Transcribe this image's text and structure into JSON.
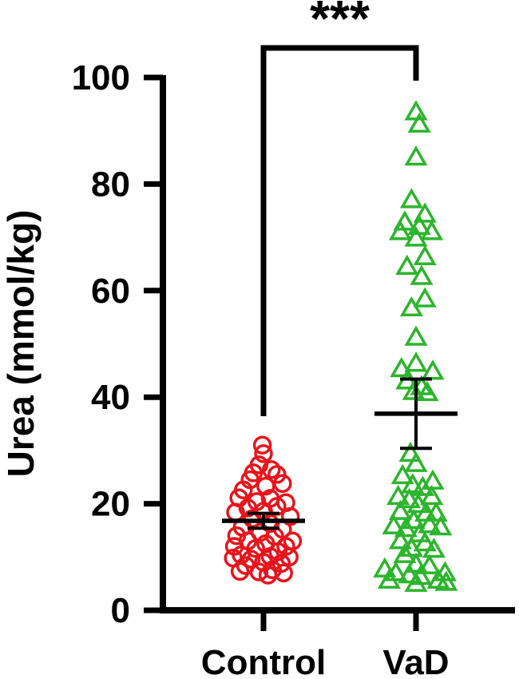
{
  "chart_data": {
    "type": "scatter",
    "title": "",
    "xlabel": "",
    "ylabel": "Urea (mmol/kg)",
    "ylim": [
      0,
      100
    ],
    "yticks": [
      0,
      20,
      40,
      60,
      80,
      100
    ],
    "categories": [
      "Control",
      "VaD"
    ],
    "grid": false,
    "legend": "none",
    "significance": {
      "label": "***",
      "between": [
        "Control",
        "VaD"
      ]
    },
    "series": [
      {
        "category": "Control",
        "marker": "circle-open",
        "color": "#e8141c",
        "mean": 16.8,
        "error_low": 15.4,
        "error_high": 18.2,
        "points": [
          {
            "x": -0.01,
            "y": 31.0
          },
          {
            "x": 0.0,
            "y": 29.4
          },
          {
            "x": -0.04,
            "y": 27.3
          },
          {
            "x": 0.07,
            "y": 26.4
          },
          {
            "x": -0.09,
            "y": 25.8
          },
          {
            "x": 0.12,
            "y": 25.5
          },
          {
            "x": -0.12,
            "y": 24.5
          },
          {
            "x": 0.17,
            "y": 23.8
          },
          {
            "x": 0.02,
            "y": 23.3
          },
          {
            "x": -0.18,
            "y": 22.6
          },
          {
            "x": -0.22,
            "y": 21.1
          },
          {
            "x": 0.06,
            "y": 21.0
          },
          {
            "x": 0.2,
            "y": 20.2
          },
          {
            "x": -0.06,
            "y": 20.4
          },
          {
            "x": -0.14,
            "y": 19.2
          },
          {
            "x": 0.12,
            "y": 19.5
          },
          {
            "x": 0.0,
            "y": 18.6
          },
          {
            "x": -0.25,
            "y": 18.4
          },
          {
            "x": 0.24,
            "y": 17.6
          },
          {
            "x": -0.1,
            "y": 17.2
          },
          {
            "x": 0.06,
            "y": 16.3
          },
          {
            "x": -0.19,
            "y": 15.6
          },
          {
            "x": 0.17,
            "y": 15.2
          },
          {
            "x": -0.03,
            "y": 14.6
          },
          {
            "x": -0.24,
            "y": 14.0
          },
          {
            "x": 0.1,
            "y": 13.9
          },
          {
            "x": 0.26,
            "y": 13.0
          },
          {
            "x": -0.14,
            "y": 13.0
          },
          {
            "x": 0.02,
            "y": 12.5
          },
          {
            "x": 0.2,
            "y": 12.0
          },
          {
            "x": -0.26,
            "y": 12.0
          },
          {
            "x": -0.07,
            "y": 11.6
          },
          {
            "x": 0.13,
            "y": 11.0
          },
          {
            "x": -0.2,
            "y": 10.4
          },
          {
            "x": 0.06,
            "y": 10.1
          },
          {
            "x": 0.23,
            "y": 10.0
          },
          {
            "x": -0.11,
            "y": 9.6
          },
          {
            "x": -0.27,
            "y": 9.8
          },
          {
            "x": 0.0,
            "y": 9.0
          },
          {
            "x": 0.16,
            "y": 8.8
          },
          {
            "x": -0.16,
            "y": 8.4
          },
          {
            "x": 0.08,
            "y": 7.6
          },
          {
            "x": -0.04,
            "y": 7.2
          },
          {
            "x": -0.21,
            "y": 7.3
          },
          {
            "x": 0.18,
            "y": 7.0
          },
          {
            "x": 0.04,
            "y": 6.6
          }
        ]
      },
      {
        "category": "VaD",
        "marker": "triangle-open",
        "color": "#2cb52c",
        "mean": 36.9,
        "error_low": 30.4,
        "error_high": 43.4,
        "points": [
          {
            "x": 0.0,
            "y": 93.5
          },
          {
            "x": 0.03,
            "y": 91.2
          },
          {
            "x": 0.0,
            "y": 85.0
          },
          {
            "x": -0.04,
            "y": 77.0
          },
          {
            "x": 0.08,
            "y": 74.3
          },
          {
            "x": -0.1,
            "y": 72.8
          },
          {
            "x": 0.03,
            "y": 72.0
          },
          {
            "x": -0.14,
            "y": 71.0
          },
          {
            "x": 0.14,
            "y": 71.0
          },
          {
            "x": 0.0,
            "y": 69.8
          },
          {
            "x": 0.08,
            "y": 66.3
          },
          {
            "x": -0.08,
            "y": 64.5
          },
          {
            "x": 0.05,
            "y": 62.6
          },
          {
            "x": 0.08,
            "y": 58.4
          },
          {
            "x": -0.04,
            "y": 56.7
          },
          {
            "x": 0.0,
            "y": 51.2
          },
          {
            "x": 0.0,
            "y": 46.3
          },
          {
            "x": -0.13,
            "y": 45.3
          },
          {
            "x": 0.15,
            "y": 44.8
          },
          {
            "x": -0.08,
            "y": 43.0
          },
          {
            "x": 0.05,
            "y": 41.9
          },
          {
            "x": -0.02,
            "y": 41.0
          },
          {
            "x": 0.1,
            "y": 40.8
          },
          {
            "x": -0.05,
            "y": 29.4
          },
          {
            "x": 0.0,
            "y": 27.5
          },
          {
            "x": -0.12,
            "y": 25.2
          },
          {
            "x": 0.15,
            "y": 24.2
          },
          {
            "x": -0.03,
            "y": 23.5
          },
          {
            "x": 0.06,
            "y": 23.0
          },
          {
            "x": -0.16,
            "y": 21.3
          },
          {
            "x": 0.14,
            "y": 21.3
          },
          {
            "x": -0.06,
            "y": 20.7
          },
          {
            "x": 0.02,
            "y": 19.8
          },
          {
            "x": -0.14,
            "y": 18.5
          },
          {
            "x": 0.09,
            "y": 18.2
          },
          {
            "x": 0.18,
            "y": 18.2
          },
          {
            "x": -0.02,
            "y": 16.8
          },
          {
            "x": 0.12,
            "y": 16.0
          },
          {
            "x": -0.2,
            "y": 15.8
          },
          {
            "x": 0.22,
            "y": 15.6
          },
          {
            "x": -0.09,
            "y": 15.3
          },
          {
            "x": 0.03,
            "y": 14.3
          },
          {
            "x": -0.14,
            "y": 13.0
          },
          {
            "x": 0.08,
            "y": 12.6
          },
          {
            "x": -0.04,
            "y": 11.6
          },
          {
            "x": 0.16,
            "y": 11.4
          },
          {
            "x": -0.1,
            "y": 10.4
          },
          {
            "x": 0.0,
            "y": 8.6
          },
          {
            "x": 0.12,
            "y": 8.3
          },
          {
            "x": -0.28,
            "y": 7.7
          },
          {
            "x": 0.26,
            "y": 7.0
          },
          {
            "x": -0.18,
            "y": 7.0
          },
          {
            "x": -0.06,
            "y": 6.6
          },
          {
            "x": 0.04,
            "y": 6.3
          },
          {
            "x": -0.24,
            "y": 5.6
          },
          {
            "x": 0.2,
            "y": 5.6
          },
          {
            "x": 0.27,
            "y": 5.2
          },
          {
            "x": 0.0,
            "y": 5.0
          }
        ]
      }
    ]
  }
}
